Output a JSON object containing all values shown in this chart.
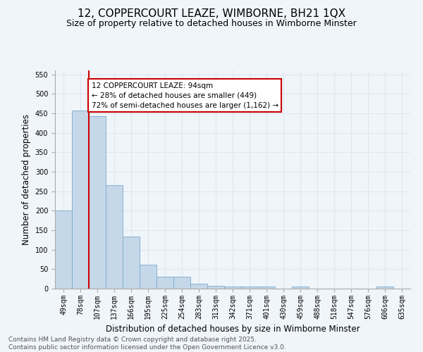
{
  "title": "12, COPPERCOURT LEAZE, WIMBORNE, BH21 1QX",
  "subtitle": "Size of property relative to detached houses in Wimborne Minster",
  "xlabel": "Distribution of detached houses by size in Wimborne Minster",
  "ylabel": "Number of detached properties",
  "categories": [
    "49sqm",
    "78sqm",
    "107sqm",
    "137sqm",
    "166sqm",
    "195sqm",
    "225sqm",
    "254sqm",
    "283sqm",
    "313sqm",
    "342sqm",
    "371sqm",
    "401sqm",
    "430sqm",
    "459sqm",
    "488sqm",
    "518sqm",
    "547sqm",
    "576sqm",
    "606sqm",
    "635sqm"
  ],
  "values": [
    200,
    457,
    443,
    265,
    133,
    62,
    30,
    30,
    12,
    8,
    5,
    5,
    5,
    0,
    5,
    0,
    0,
    0,
    0,
    5,
    0
  ],
  "bar_color": "#c5d8ea",
  "bar_edge_color": "#7aaac8",
  "grid_color": "#dde8f0",
  "background_color": "#f0f5fa",
  "property_line_x": 1.5,
  "annotation_line1": "12 COPPERCOURT LEAZE: 94sqm",
  "annotation_line2": "← 28% of detached houses are smaller (449)",
  "annotation_line3": "72% of semi-detached houses are larger (1,162) →",
  "annotation_box_color": "#cc0000",
  "vline_color": "#cc0000",
  "ylim": [
    0,
    560
  ],
  "yticks": [
    0,
    50,
    100,
    150,
    200,
    250,
    300,
    350,
    400,
    450,
    500,
    550
  ],
  "footer": "Contains HM Land Registry data © Crown copyright and database right 2025.\nContains public sector information licensed under the Open Government Licence v3.0.",
  "title_fontsize": 11,
  "subtitle_fontsize": 9,
  "xlabel_fontsize": 8.5,
  "ylabel_fontsize": 8.5,
  "tick_fontsize": 7,
  "annotation_fontsize": 7.5,
  "footer_fontsize": 6.5
}
